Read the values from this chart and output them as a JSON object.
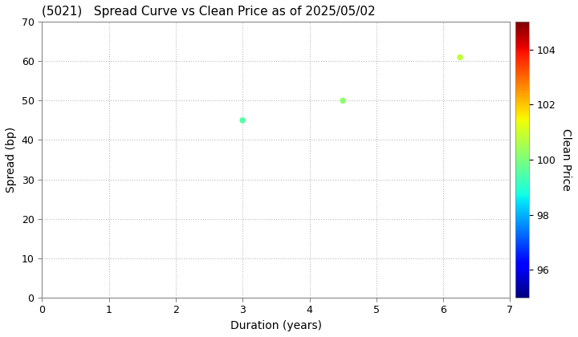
{
  "title": "(5021)   Spread Curve vs Clean Price as of 2025/05/02",
  "xlabel": "Duration (years)",
  "ylabel": "Spread (bp)",
  "colorbar_label": "Clean Price",
  "xlim": [
    0,
    7
  ],
  "ylim": [
    0,
    70
  ],
  "xticks": [
    0,
    1,
    2,
    3,
    4,
    5,
    6,
    7
  ],
  "yticks": [
    0,
    10,
    20,
    30,
    40,
    50,
    60,
    70
  ],
  "colorbar_ticks": [
    96,
    98,
    100,
    102,
    104
  ],
  "colorbar_min": 95,
  "colorbar_max": 105,
  "points": [
    {
      "duration": 3.0,
      "spread": 45.0,
      "price": 99.5
    },
    {
      "duration": 4.5,
      "spread": 50.0,
      "price": 100.2
    },
    {
      "duration": 6.25,
      "spread": 61.0,
      "price": 100.8
    }
  ],
  "marker_size": 30,
  "grid_color": "#bbbbbb",
  "grid_style": "dotted",
  "background_color": "#ffffff",
  "title_fontsize": 11,
  "label_fontsize": 10,
  "tick_fontsize": 9
}
